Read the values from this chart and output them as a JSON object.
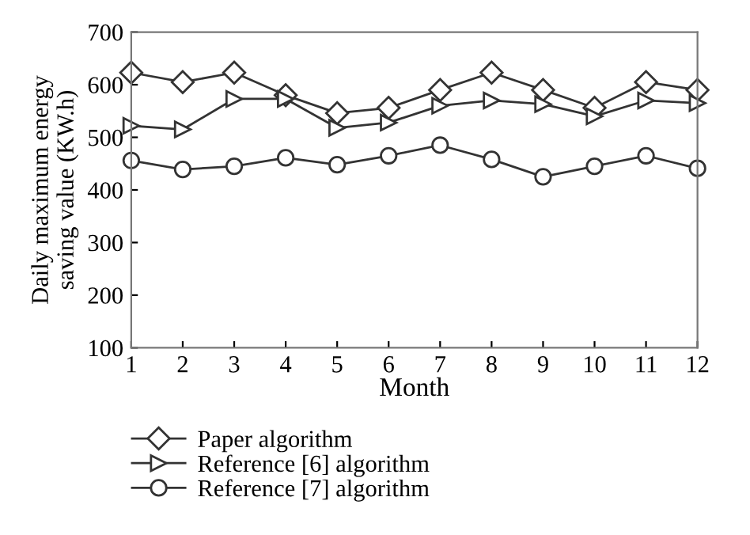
{
  "chart_data": {
    "type": "line",
    "xlabel": "Month",
    "ylabel": "Daily maximum energy\nsaving value (KW.h)",
    "x": [
      1,
      2,
      3,
      4,
      5,
      6,
      7,
      8,
      9,
      10,
      11,
      12
    ],
    "series": [
      {
        "name": "Paper algorithm",
        "color": "#333333",
        "marker": "diamond",
        "values": [
          623,
          605,
          623,
          580,
          546,
          556,
          590,
          623,
          590,
          556,
          605,
          590
        ]
      },
      {
        "name": "Reference [6] algorithm",
        "color": "#333333",
        "marker": "triangle",
        "values": [
          522,
          515,
          573,
          573,
          518,
          528,
          560,
          570,
          563,
          540,
          570,
          565
        ]
      },
      {
        "name": "Reference [7] algorithm",
        "color": "#333333",
        "marker": "circle",
        "values": [
          456,
          439,
          445,
          461,
          448,
          465,
          485,
          458,
          425,
          445,
          465,
          441
        ]
      }
    ],
    "xlim": [
      1,
      12
    ],
    "xticks": [
      1,
      2,
      3,
      4,
      5,
      6,
      7,
      8,
      9,
      10,
      11,
      12
    ],
    "ylim": [
      100,
      700
    ],
    "yticks": [
      100,
      200,
      300,
      400,
      500,
      600,
      700
    ],
    "grid": false,
    "legend": "bottom",
    "line_style": "solid"
  }
}
